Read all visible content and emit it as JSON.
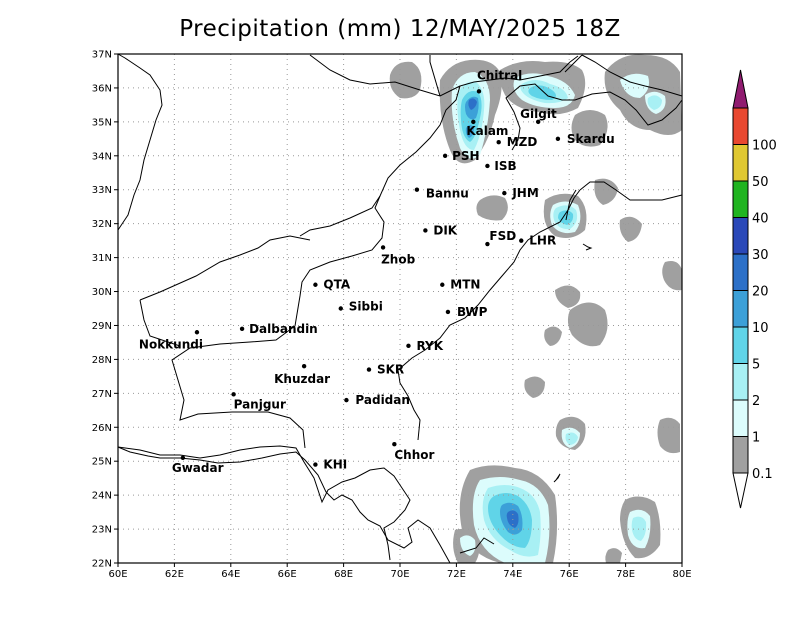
{
  "title": "Precipitation (mm) 12/MAY/2025 18Z",
  "map": {
    "lon_labels": [
      "60E",
      "62E",
      "64E",
      "66E",
      "68E",
      "70E",
      "72E",
      "74E",
      "76E",
      "78E",
      "80E"
    ],
    "lat_labels": [
      "22N",
      "23N",
      "24N",
      "25N",
      "26N",
      "27N",
      "28N",
      "29N",
      "30N",
      "31N",
      "32N",
      "33N",
      "34N",
      "35N",
      "36N",
      "37N"
    ]
  },
  "cities": [
    {
      "name": "Chitral",
      "lon": 72.8,
      "lat": 35.9
    },
    {
      "name": "Gilgit",
      "lon": 74.9,
      "lat": 35.0
    },
    {
      "name": "Kalam",
      "lon": 72.6,
      "lat": 35.0
    },
    {
      "name": "Skardu",
      "lon": 75.6,
      "lat": 34.5
    },
    {
      "name": "MZD",
      "lon": 73.5,
      "lat": 34.4
    },
    {
      "name": "PSH",
      "lon": 71.6,
      "lat": 34.0
    },
    {
      "name": "ISB",
      "lon": 73.1,
      "lat": 33.7
    },
    {
      "name": "JHM",
      "lon": 73.7,
      "lat": 32.9
    },
    {
      "name": "Bannu",
      "lon": 70.6,
      "lat": 33.0
    },
    {
      "name": "DIK",
      "lon": 70.9,
      "lat": 31.8
    },
    {
      "name": "FSD",
      "lon": 73.1,
      "lat": 31.4
    },
    {
      "name": "LHR",
      "lon": 74.3,
      "lat": 31.5
    },
    {
      "name": "Zhob",
      "lon": 69.4,
      "lat": 31.3
    },
    {
      "name": "QTA",
      "lon": 67.0,
      "lat": 30.2
    },
    {
      "name": "MTN",
      "lon": 71.5,
      "lat": 30.2
    },
    {
      "name": "Sibbi",
      "lon": 67.9,
      "lat": 29.5
    },
    {
      "name": "BWP",
      "lon": 71.7,
      "lat": 29.4
    },
    {
      "name": "Dalbandin",
      "lon": 64.4,
      "lat": 28.9
    },
    {
      "name": "Nokkundi",
      "lon": 62.8,
      "lat": 28.8
    },
    {
      "name": "RYK",
      "lon": 70.3,
      "lat": 28.4
    },
    {
      "name": "SKR",
      "lon": 68.9,
      "lat": 27.7
    },
    {
      "name": "Khuzdar",
      "lon": 66.6,
      "lat": 27.8
    },
    {
      "name": "Panjgur",
      "lon": 64.1,
      "lat": 26.97
    },
    {
      "name": "Padidan",
      "lon": 68.1,
      "lat": 26.8
    },
    {
      "name": "Chhor",
      "lon": 69.8,
      "lat": 25.5
    },
    {
      "name": "KHI",
      "lon": 67.0,
      "lat": 24.9
    },
    {
      "name": "Gwadar",
      "lon": 62.3,
      "lat": 25.1
    }
  ],
  "colorbar": {
    "labels": [
      "0.1",
      "1",
      "2",
      "5",
      "10",
      "20",
      "30",
      "40",
      "50",
      "100"
    ],
    "colors": {
      "c0": "#a0a0a0",
      "c1": "#dcfcfc",
      "c2": "#a8f0f4",
      "c3": "#60d4e8",
      "c4": "#3ca0d8",
      "c5": "#2c70c8",
      "c6": "#2a48b8",
      "c7": "#20b420",
      "c8": "#e0c832",
      "c9": "#e84830",
      "c10": "#901c70"
    }
  }
}
